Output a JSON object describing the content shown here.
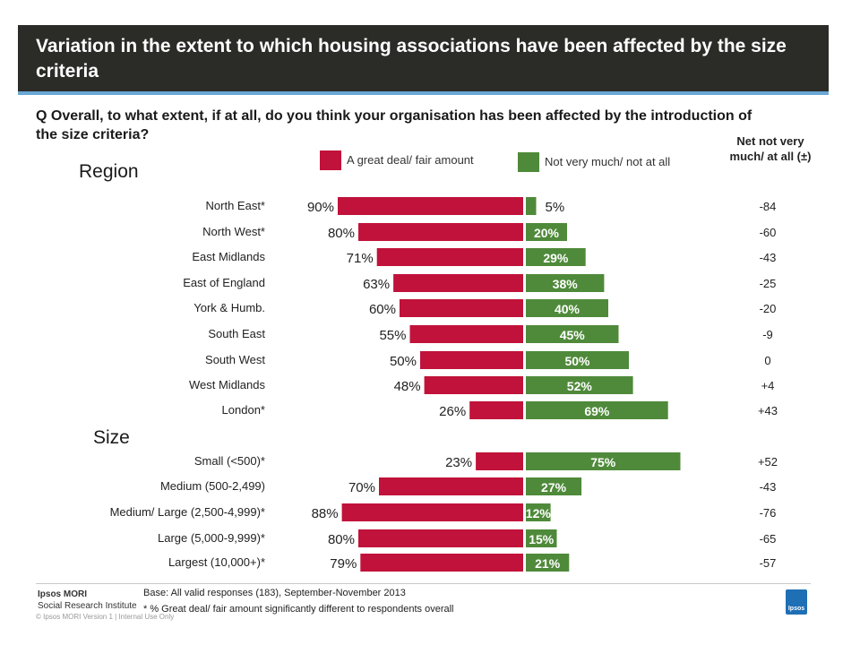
{
  "title": "Variation in the extent to which housing associations have been affected by the size criteria",
  "question": "Q  Overall, to what extent, if at all, do you think your organisation has been affected by the introduction of the size criteria?",
  "net_header": "Net not very much/ at all (±)",
  "colors": {
    "affected": "#c0123a",
    "not_affected": "#4f8a3a"
  },
  "chart_data": {
    "type": "bar",
    "legend": [
      {
        "name": "A great deal/ fair amount",
        "color": "#c0123a"
      },
      {
        "name": "Not very much/ not at all",
        "color": "#4f8a3a"
      }
    ],
    "groups": [
      {
        "name": "Region",
        "rows": [
          {
            "label": "North East*",
            "affected": 90,
            "affected_label": "90%",
            "not_affected": 5,
            "not_affected_label": "5%",
            "net": "-84"
          },
          {
            "label": "North West*",
            "affected": 80,
            "affected_label": "80%",
            "not_affected": 20,
            "not_affected_label": "20%",
            "net": "-60"
          },
          {
            "label": "East Midlands",
            "affected": 71,
            "affected_label": "71%",
            "not_affected": 29,
            "not_affected_label": "29%",
            "net": "-43"
          },
          {
            "label": "East of England",
            "affected": 63,
            "affected_label": "63%",
            "not_affected": 38,
            "not_affected_label": "38%",
            "net": "-25"
          },
          {
            "label": "York & Humb.",
            "affected": 60,
            "affected_label": "60%",
            "not_affected": 40,
            "not_affected_label": "40%",
            "net": "-20"
          },
          {
            "label": "South East",
            "affected": 55,
            "affected_label": "55%",
            "not_affected": 45,
            "not_affected_label": "45%",
            "net": "-9"
          },
          {
            "label": "South West",
            "affected": 50,
            "affected_label": "50%",
            "not_affected": 50,
            "not_affected_label": "50%",
            "net": "0"
          },
          {
            "label": "West Midlands",
            "affected": 48,
            "affected_label": "48%",
            "not_affected": 52,
            "not_affected_label": "52%",
            "net": "+4"
          },
          {
            "label": "London*",
            "affected": 26,
            "affected_label": "26%",
            "not_affected": 69,
            "not_affected_label": "69%",
            "net": "+43"
          }
        ]
      },
      {
        "name": "Size",
        "rows": [
          {
            "label": "Small (<500)*",
            "affected": 23,
            "affected_label": "23%",
            "not_affected": 75,
            "not_affected_label": "75%",
            "net": "+52"
          },
          {
            "label": "Medium (500-2,499)",
            "affected": 70,
            "affected_label": "70%",
            "not_affected": 27,
            "not_affected_label": "27%",
            "net": "-43"
          },
          {
            "label": "Medium/ Large (2,500-4,999)*",
            "affected": 88,
            "affected_label": "88%",
            "not_affected": 12,
            "not_affected_label": "12%",
            "net": "-76"
          },
          {
            "label": "Large (5,000-9,999)*",
            "affected": 80,
            "affected_label": "80%",
            "not_affected": 15,
            "not_affected_label": "15%",
            "net": "-65"
          },
          {
            "label": "Largest (10,000+)*",
            "affected": 79,
            "affected_label": "79%",
            "not_affected": 21,
            "not_affected_label": "21%",
            "net": "-57"
          }
        ]
      }
    ]
  },
  "footer": {
    "base": "Base: All valid responses (183), September-November 2013",
    "note": "* % Great deal/ fair amount significantly different to respondents overall",
    "brand_name": "Ipsos MORI",
    "brand_sub": "Social Research Institute",
    "copyright": "© Ipsos MORI   Version 1 | Internal Use Only",
    "logo_text": "Ipsos"
  }
}
